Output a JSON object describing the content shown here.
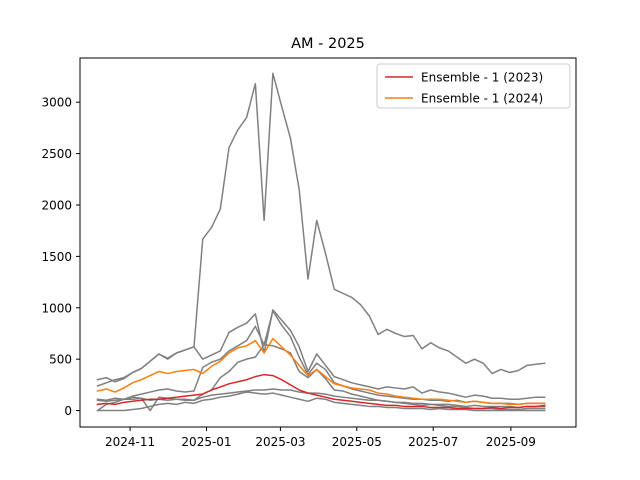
{
  "chart_data": {
    "type": "line",
    "title": "AM - 2025",
    "xlabel": "",
    "ylabel": "",
    "x_tick_labels": [
      "2024-11",
      "2025-01",
      "2025-03",
      "2025-05",
      "2025-07",
      "2025-09"
    ],
    "x_tick_dates": [
      "2024-11-01",
      "2025-01-01",
      "2025-03-01",
      "2025-05-01",
      "2025-07-01",
      "2025-09-01"
    ],
    "y_ticks": [
      0,
      500,
      1000,
      1500,
      2000,
      2500,
      3000
    ],
    "xlim": [
      "2024-09-22",
      "2025-10-23"
    ],
    "ylim": [
      -160,
      3430
    ],
    "grid": false,
    "legend_position": "top-right",
    "dates": [
      "2024-10-06",
      "2024-10-13",
      "2024-10-20",
      "2024-10-27",
      "2024-11-03",
      "2024-11-10",
      "2024-11-17",
      "2024-11-24",
      "2024-12-01",
      "2024-12-08",
      "2024-12-15",
      "2024-12-22",
      "2024-12-29",
      "2025-01-05",
      "2025-01-12",
      "2025-01-19",
      "2025-01-26",
      "2025-02-02",
      "2025-02-09",
      "2025-02-16",
      "2025-02-23",
      "2025-03-02",
      "2025-03-09",
      "2025-03-16",
      "2025-03-23",
      "2025-03-30",
      "2025-04-06",
      "2025-04-13",
      "2025-04-20",
      "2025-04-27",
      "2025-05-04",
      "2025-05-11",
      "2025-05-18",
      "2025-05-25",
      "2025-06-01",
      "2025-06-08",
      "2025-06-15",
      "2025-06-22",
      "2025-06-29",
      "2025-07-06",
      "2025-07-13",
      "2025-07-20",
      "2025-07-27",
      "2025-08-03",
      "2025-08-10",
      "2025-08-17",
      "2025-08-24",
      "2025-08-31",
      "2025-09-07",
      "2025-09-14",
      "2025-09-21",
      "2025-09-28"
    ],
    "series": [
      {
        "name": "",
        "color": "#808080",
        "values": [
          300,
          320,
          280,
          310,
          370,
          410,
          480,
          550,
          500,
          560,
          590,
          620,
          1670,
          1780,
          1960,
          2560,
          2730,
          2850,
          3180,
          1850,
          3280,
          2960,
          2650,
          2150,
          1280,
          1850,
          1530,
          1180,
          1140,
          1100,
          1030,
          920,
          740,
          790,
          750,
          720,
          730,
          600,
          660,
          610,
          580,
          520,
          460,
          500,
          460,
          360,
          400,
          370,
          390,
          440,
          450,
          460
        ]
      },
      {
        "name": "",
        "color": "#808080",
        "values": [
          240,
          270,
          300,
          320,
          370,
          410,
          480,
          550,
          510,
          560,
          590,
          620,
          500,
          540,
          580,
          760,
          810,
          850,
          940,
          560,
          980,
          880,
          780,
          620,
          380,
          550,
          440,
          330,
          300,
          270,
          250,
          230,
          210,
          230,
          220,
          210,
          230,
          170,
          200,
          180,
          170,
          150,
          130,
          150,
          140,
          120,
          120,
          110,
          110,
          120,
          130,
          130
        ]
      },
      {
        "name": "",
        "color": "#808080",
        "values": [
          110,
          100,
          120,
          110,
          140,
          160,
          180,
          200,
          210,
          190,
          180,
          190,
          420,
          470,
          500,
          580,
          630,
          680,
          820,
          640,
          970,
          830,
          720,
          520,
          350,
          460,
          400,
          270,
          240,
          210,
          190,
          170,
          150,
          140,
          130,
          120,
          110,
          110,
          100,
          100,
          90,
          100,
          80,
          90,
          80,
          70,
          70,
          70,
          60,
          70,
          70,
          70
        ]
      },
      {
        "name": "",
        "color": "#808080",
        "values": [
          0,
          60,
          80,
          110,
          130,
          120,
          0,
          130,
          120,
          110,
          100,
          100,
          160,
          200,
          320,
          380,
          470,
          500,
          520,
          640,
          630,
          600,
          560,
          380,
          320,
          400,
          310,
          200,
          190,
          160,
          140,
          120,
          100,
          90,
          80,
          70,
          60,
          50,
          60,
          50,
          40,
          40,
          30,
          20,
          20,
          20,
          10,
          10,
          10,
          20,
          20,
          20
        ]
      },
      {
        "name": "",
        "color": "#808080",
        "values": [
          100,
          90,
          100,
          110,
          110,
          120,
          100,
          110,
          100,
          110,
          110,
          100,
          130,
          150,
          160,
          170,
          180,
          190,
          200,
          200,
          210,
          200,
          200,
          180,
          170,
          170,
          160,
          140,
          130,
          120,
          110,
          100,
          100,
          90,
          80,
          80,
          70,
          70,
          60,
          60,
          60,
          50,
          40,
          50,
          40,
          40,
          40,
          40,
          30,
          40,
          40,
          40
        ]
      },
      {
        "name": "",
        "color": "#808080",
        "values": [
          0,
          0,
          0,
          0,
          10,
          20,
          40,
          60,
          70,
          60,
          80,
          70,
          100,
          110,
          130,
          140,
          160,
          180,
          170,
          160,
          170,
          150,
          130,
          110,
          90,
          120,
          110,
          80,
          70,
          60,
          50,
          40,
          40,
          30,
          30,
          20,
          20,
          20,
          10,
          20,
          10,
          10,
          10,
          0,
          0,
          0,
          0,
          0,
          0,
          0,
          0,
          0
        ]
      },
      {
        "name": "Ensemble - 1 (2023)",
        "color": "#d62728",
        "values": [
          60,
          70,
          60,
          80,
          90,
          100,
          110,
          110,
          120,
          130,
          140,
          150,
          160,
          200,
          230,
          260,
          280,
          300,
          330,
          350,
          340,
          300,
          250,
          200,
          170,
          150,
          130,
          110,
          100,
          90,
          80,
          70,
          60,
          50,
          50,
          40,
          40,
          40,
          30,
          30,
          30,
          20,
          20,
          20,
          20,
          30,
          20,
          30,
          30,
          40,
          40,
          50
        ]
      },
      {
        "name": "Ensemble - 1 (2024)",
        "color": "#ff7f0e",
        "values": [
          190,
          210,
          180,
          220,
          270,
          300,
          340,
          380,
          360,
          380,
          390,
          400,
          360,
          430,
          480,
          560,
          610,
          630,
          680,
          560,
          700,
          620,
          540,
          440,
          340,
          400,
          330,
          260,
          240,
          220,
          210,
          200,
          170,
          160,
          140,
          130,
          120,
          110,
          110,
          110,
          100,
          90,
          80,
          90,
          80,
          70,
          70,
          60,
          60,
          70,
          70,
          70
        ]
      }
    ]
  }
}
